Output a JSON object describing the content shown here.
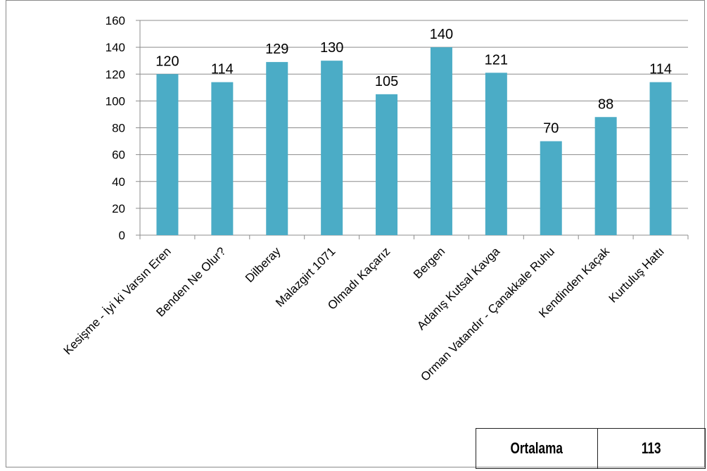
{
  "chart_data": {
    "type": "bar",
    "categories": [
      "Kesişme - İyi ki Varsın Eren",
      "Benden Ne Olur?",
      "Dilberay",
      "Malazgirt 1071",
      "Olmadı Kaçarız",
      "Bergen",
      "Adanış Kutsal Kavga",
      "Orman Vatandır - Çanakkale Ruhu",
      "Kendinden Kaçak",
      "Kurtuluş Hattı"
    ],
    "values": [
      120,
      114,
      129,
      130,
      105,
      140,
      121,
      70,
      88,
      114
    ],
    "ylim": [
      0,
      160
    ],
    "yticks": [
      0,
      20,
      40,
      60,
      80,
      100,
      120,
      140,
      160
    ],
    "bar_color": "#4bacc6",
    "grid": true,
    "legend": "none"
  },
  "summary": {
    "label": "Ortalama",
    "value": "113"
  }
}
